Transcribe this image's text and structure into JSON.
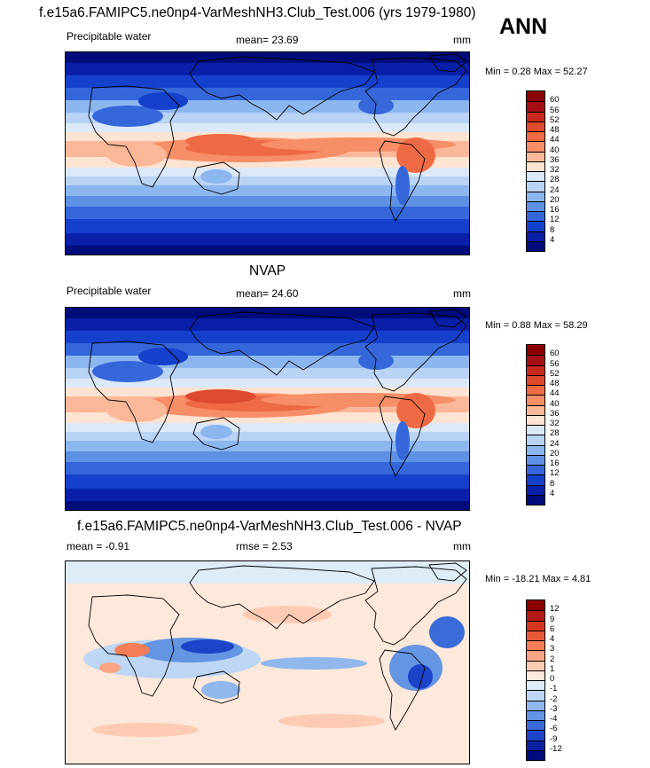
{
  "header": {
    "title": "f.e15a6.FAMIPC5.ne0np4-VarMeshNH3.Club_Test.006 (yrs 1979-1980)",
    "season": "ANN"
  },
  "panels": [
    {
      "title": "",
      "variable": "Precipitable water",
      "stat_text": "mean=  23.69",
      "units": "mm",
      "min_max": "Min =   0.28 Max =  52.27"
    },
    {
      "title": "NVAP",
      "variable": "Precipitable water",
      "stat_text": "mean=  24.60",
      "units": "mm",
      "min_max": "Min =   0.88 Max =  58.29"
    },
    {
      "title": "f.e15a6.FAMIPC5.ne0np4-VarMeshNH3.Club_Test.006 - NVAP",
      "mean_text": "mean =  -0.91",
      "rmse_text": "rmse =   2.53",
      "units": "mm",
      "min_max": "Min = -18.21 Max =   4.81"
    }
  ],
  "colorbars": {
    "absolute": {
      "labels": [
        "60",
        "56",
        "52",
        "48",
        "44",
        "40",
        "36",
        "32",
        "28",
        "24",
        "20",
        "16",
        "12",
        "8",
        "4"
      ],
      "colors": [
        "#8b0000",
        "#a50f15",
        "#c8281e",
        "#de4a2e",
        "#ee6a45",
        "#f68e68",
        "#fbb898",
        "#fde3d2",
        "#dbe8f8",
        "#b8d3f4",
        "#8cb6ee",
        "#5e91e4",
        "#3567da",
        "#1540cc",
        "#0a1fa8",
        "#000c7a"
      ]
    },
    "difference": {
      "labels": [
        "12",
        "9",
        "6",
        "4",
        "3",
        "2",
        "1",
        "0",
        "-1",
        "-2",
        "-3",
        "-4",
        "-6",
        "-9",
        "-12"
      ],
      "colors": [
        "#8b0000",
        "#b51a14",
        "#d2361f",
        "#e85a37",
        "#f37e58",
        "#f9a585",
        "#fdcbb3",
        "#fde8dc",
        "#deecf8",
        "#bcd6f3",
        "#90b8ec",
        "#6494e2",
        "#3b6bd8",
        "#1c43c8",
        "#0a22a2",
        "#000c7a"
      ]
    }
  },
  "chart_data": [
    {
      "type": "heatmap",
      "title": "",
      "variable": "Precipitable water",
      "units": "mm",
      "mean": 23.69,
      "min": 0.28,
      "max": 52.27,
      "contour_levels": [
        4,
        8,
        12,
        16,
        20,
        24,
        28,
        32,
        36,
        40,
        44,
        48,
        52,
        56,
        60
      ]
    },
    {
      "type": "heatmap",
      "title": "NVAP",
      "variable": "Precipitable water",
      "units": "mm",
      "mean": 24.6,
      "min": 0.88,
      "max": 58.29,
      "contour_levels": [
        4,
        8,
        12,
        16,
        20,
        24,
        28,
        32,
        36,
        40,
        44,
        48,
        52,
        56,
        60
      ]
    },
    {
      "type": "heatmap",
      "title": "f.e15a6.FAMIPC5.ne0np4-VarMeshNH3.Club_Test.006 - NVAP",
      "units": "mm",
      "mean": -0.91,
      "rmse": 2.53,
      "min": -18.21,
      "max": 4.81,
      "contour_levels": [
        -12,
        -9,
        -6,
        -4,
        -3,
        -2,
        -1,
        0,
        1,
        2,
        3,
        4,
        6,
        9,
        12
      ]
    }
  ]
}
